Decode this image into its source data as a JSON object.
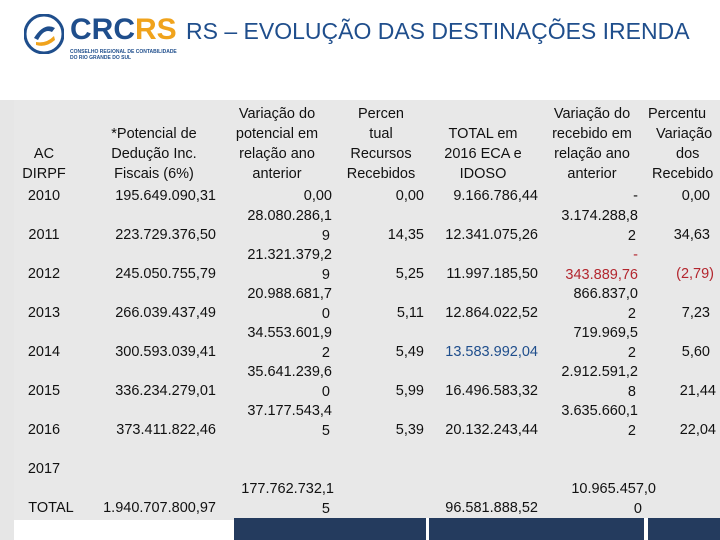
{
  "header": {
    "logo_text_main": "CRC",
    "logo_text_accent": "RS",
    "logo_subtitle_1": "CONSELHO REGIONAL DE CONTABILIDADE",
    "logo_subtitle_2": "DO RIO GRANDE DO SUL",
    "title": "RS – EVOLUÇÃO DAS DESTINAÇÕES IRENDA"
  },
  "table": {
    "headers": {
      "ano": [
        "AC",
        "DIRPF"
      ],
      "potencial": [
        "*Potencial de",
        "Dedução Inc.",
        "Fiscais (6%)"
      ],
      "variacao_potencial": [
        "Variação do",
        "potencial em",
        "relação ano",
        "anterior"
      ],
      "percentual": [
        "Percen",
        "tual",
        "Recursos",
        "Recebidos"
      ],
      "total": [
        "TOTAL em",
        "2016  ECA e",
        "IDOSO"
      ],
      "variacao_recebido": [
        "Variação do",
        "recebido em",
        "relação ano",
        "anterior"
      ],
      "percentual_variacao": [
        "Percentu",
        "Variação",
        "dos",
        "Recebido"
      ]
    },
    "rows": [
      {
        "ano": "2010",
        "potencial": "195.649.090,31",
        "var_pot": [
          "0,00"
        ],
        "perc": "0,00",
        "total": "9.166.786,44",
        "var_rec": [
          "-"
        ],
        "perc_var": "0,00"
      },
      {
        "ano": "2011",
        "potencial": "223.729.376,50",
        "var_pot": [
          "28.080.286,1",
          "9"
        ],
        "perc": "14,35",
        "total": "12.341.075,26",
        "var_rec": [
          "3.174.288,8",
          "2"
        ],
        "perc_var": "34,63"
      },
      {
        "ano": "2012",
        "potencial": "245.050.755,79",
        "var_pot": [
          "21.321.379,2",
          "9"
        ],
        "perc": "5,25",
        "total": "11.997.185,50",
        "var_rec": [
          "-",
          "343.889,76"
        ],
        "perc_var": "(2,79)"
      },
      {
        "ano": "2013",
        "potencial": "266.039.437,49",
        "var_pot": [
          "20.988.681,7",
          "0"
        ],
        "perc": "5,11",
        "total": "12.864.022,52",
        "var_rec": [
          "866.837,0",
          "2"
        ],
        "perc_var": "7,23"
      },
      {
        "ano": "2014",
        "potencial": "300.593.039,41",
        "var_pot": [
          "34.553.601,9",
          "2"
        ],
        "perc": "5,49",
        "total": "13.583.992,04",
        "var_rec": [
          "719.969,5",
          "2"
        ],
        "perc_var": "5,60"
      },
      {
        "ano": "2015",
        "potencial": "336.234.279,01",
        "var_pot": [
          "35.641.239,6",
          "0"
        ],
        "perc": "5,99",
        "total": "16.496.583,32",
        "var_rec": [
          "2.912.591,2",
          "8"
        ],
        "perc_var": "21,44"
      },
      {
        "ano": "2016",
        "potencial": "373.411.822,46",
        "var_pot": [
          "37.177.543,4",
          "5"
        ],
        "perc": "5,39",
        "total": "20.132.243,44",
        "var_rec": [
          "3.635.660,1",
          "2"
        ],
        "perc_var": "22,04"
      }
    ],
    "row_2017": "2017",
    "total_row": {
      "label": "TOTAL",
      "potencial": "1.940.707.800,97",
      "var_pot": [
        "177.762.732,1",
        "5"
      ],
      "total": "96.581.888,52",
      "var_rec": [
        "10.965.457,0",
        "0"
      ]
    }
  },
  "colors": {
    "brand_blue": "#1f4e8c",
    "brand_orange": "#f0a31c",
    "negative_red": "#b3262e",
    "table_background": "#e8e8e8",
    "footer_bar": "#243b5e"
  }
}
